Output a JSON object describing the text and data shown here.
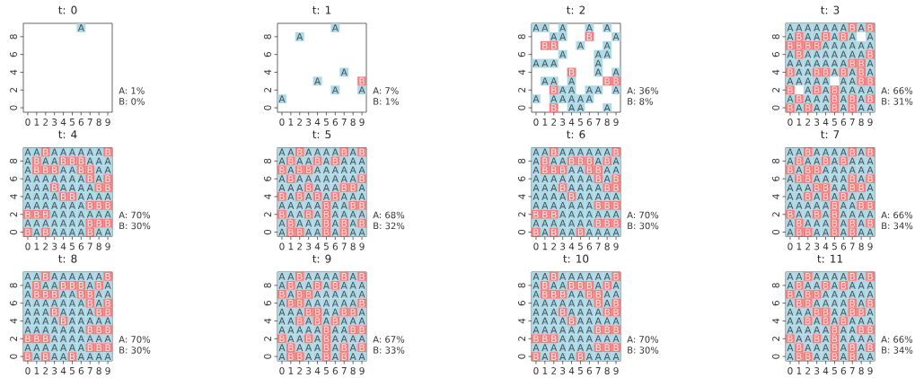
{
  "chart_data": [
    {
      "type": "scatter",
      "title": "t: 0",
      "xlim": [
        -0.5,
        9.5
      ],
      "ylim": [
        -0.5,
        9.5
      ],
      "xticks": [
        0,
        1,
        2,
        3,
        4,
        5,
        6,
        7,
        8,
        9
      ],
      "yticks": [
        0,
        2,
        4,
        6,
        8
      ],
      "marker": "square",
      "series": [
        {
          "name": "A",
          "color": "#add8e6",
          "x": [
            6
          ],
          "values": [
            9
          ]
        }
      ],
      "annotations": [
        "A: 1%",
        "B: 0%"
      ]
    },
    {
      "type": "scatter",
      "title": "t: 1",
      "xlim": [
        -0.5,
        9.5
      ],
      "ylim": [
        -0.5,
        9.5
      ],
      "xticks": [
        0,
        1,
        2,
        3,
        4,
        5,
        6,
        7,
        8,
        9
      ],
      "yticks": [
        0,
        2,
        4,
        6,
        8
      ],
      "marker": "square",
      "series": [
        {
          "name": "A",
          "color": "#add8e6",
          "x": [
            6,
            2,
            7,
            4,
            6,
            9,
            0
          ],
          "values": [
            9,
            8,
            4,
            3,
            2,
            2,
            1
          ]
        },
        {
          "name": "B",
          "color": "#f08080",
          "x": [
            9
          ],
          "values": [
            3
          ]
        }
      ],
      "annotations": [
        "A: 7%",
        "B: 1%"
      ]
    },
    {
      "type": "scatter",
      "title": "t: 2",
      "xlim": [
        -0.5,
        9.5
      ],
      "ylim": [
        -0.5,
        9.5
      ],
      "xticks": [
        0,
        1,
        2,
        3,
        4,
        5,
        6,
        7,
        8,
        9
      ],
      "yticks": [
        0,
        2,
        4,
        6,
        8
      ],
      "marker": "square",
      "series": [
        {
          "name": "A",
          "color": "#add8e6",
          "x": [
            0,
            1,
            3,
            6,
            8,
            2,
            3,
            9,
            5,
            8,
            3,
            7,
            8,
            0,
            1,
            2,
            7,
            7,
            9,
            1,
            2,
            4,
            3,
            4,
            6,
            7,
            9,
            0,
            2,
            3,
            4,
            5,
            6,
            4,
            5,
            8
          ],
          "values": [
            9,
            9,
            9,
            9,
            9,
            8,
            8,
            8,
            7,
            7,
            6,
            6,
            6,
            5,
            5,
            5,
            5,
            4,
            4,
            3,
            3,
            3,
            2,
            2,
            2,
            2,
            2,
            1,
            1,
            1,
            1,
            1,
            1,
            0,
            0,
            0
          ]
        },
        {
          "name": "B",
          "color": "#f08080",
          "x": [
            6,
            1,
            2,
            4,
            8,
            9,
            2,
            2
          ],
          "values": [
            8,
            7,
            7,
            4,
            3,
            3,
            2,
            0
          ]
        }
      ],
      "annotations": [
        "A: 36%",
        "B: 8%"
      ]
    },
    {
      "type": "scatter",
      "title": "t: 3",
      "xlim": [
        -0.5,
        9.5
      ],
      "ylim": [
        -0.5,
        9.5
      ],
      "xticks": [
        0,
        1,
        2,
        3,
        4,
        5,
        6,
        7,
        8,
        9
      ],
      "yticks": [
        0,
        2,
        4,
        6,
        8
      ],
      "marker": "square",
      "series": [
        {
          "name": "A",
          "color": "#add8e6",
          "x": [
            0,
            1,
            2,
            3,
            4,
            5,
            6,
            8,
            0,
            2,
            3,
            5,
            7,
            9,
            4,
            5,
            6,
            7,
            8,
            9,
            0,
            2,
            3,
            4,
            5,
            6,
            7,
            8,
            0,
            1,
            2,
            3,
            4,
            5,
            6,
            9,
            1,
            2,
            5,
            7,
            9,
            0,
            1,
            2,
            3,
            4,
            6,
            7,
            2,
            4,
            6,
            7,
            8,
            9,
            0,
            2,
            3,
            4,
            6,
            8,
            1,
            3,
            4,
            6,
            8,
            9
          ],
          "values": [
            9,
            9,
            9,
            9,
            9,
            9,
            9,
            9,
            8,
            8,
            8,
            8,
            8,
            8,
            7,
            7,
            7,
            7,
            7,
            7,
            6,
            6,
            6,
            6,
            6,
            6,
            6,
            6,
            5,
            5,
            5,
            5,
            5,
            5,
            5,
            5,
            4,
            4,
            4,
            4,
            4,
            3,
            3,
            3,
            3,
            3,
            3,
            3,
            2,
            2,
            2,
            2,
            2,
            2,
            1,
            1,
            1,
            1,
            1,
            1,
            0,
            0,
            0,
            0,
            0,
            0
          ]
        },
        {
          "name": "B",
          "color": "#f08080",
          "x": [
            7,
            9,
            1,
            4,
            6,
            0,
            1,
            2,
            3,
            1,
            9,
            7,
            8,
            0,
            3,
            4,
            6,
            8,
            8,
            9,
            0,
            3,
            5,
            1,
            5,
            7,
            9,
            0,
            2,
            5,
            7
          ],
          "values": [
            9,
            9,
            8,
            8,
            8,
            7,
            7,
            7,
            7,
            6,
            6,
            5,
            5,
            4,
            4,
            4,
            4,
            4,
            3,
            3,
            2,
            2,
            2,
            1,
            1,
            1,
            1,
            0,
            0,
            0,
            0
          ]
        }
      ],
      "annotations": [
        "A: 66%",
        "B: 31%"
      ]
    },
    {
      "type": "scatter",
      "title": "t: 4",
      "xlim": [
        -0.5,
        9.5
      ],
      "ylim": [
        -0.5,
        9.5
      ],
      "xticks": [
        0,
        1,
        2,
        3,
        4,
        5,
        6,
        7,
        8,
        9
      ],
      "yticks": [
        0,
        2,
        4,
        6,
        8
      ],
      "marker": "square",
      "series": [
        {
          "name": "A",
          "color": "#add8e6",
          "x": [
            0,
            1,
            3,
            4,
            5,
            6,
            7,
            8,
            0,
            2,
            3,
            7,
            8,
            9,
            0,
            4,
            5,
            8,
            9,
            0,
            1,
            2,
            3,
            4,
            5,
            6,
            8,
            0,
            1,
            2,
            4,
            5,
            6,
            7,
            0,
            1,
            2,
            3,
            6,
            7,
            8,
            9,
            0,
            1,
            2,
            3,
            4,
            5,
            6,
            3,
            4,
            5,
            6,
            7,
            8,
            9,
            0,
            1,
            2,
            3,
            4,
            5,
            6,
            1,
            3,
            4,
            5,
            6,
            8,
            9
          ],
          "values": [
            9,
            9,
            9,
            9,
            9,
            9,
            9,
            9,
            8,
            8,
            8,
            8,
            8,
            8,
            7,
            7,
            7,
            7,
            7,
            6,
            6,
            6,
            6,
            6,
            6,
            6,
            6,
            5,
            5,
            5,
            5,
            5,
            5,
            5,
            4,
            4,
            4,
            4,
            4,
            4,
            4,
            4,
            3,
            3,
            3,
            3,
            3,
            3,
            3,
            2,
            2,
            2,
            2,
            2,
            2,
            2,
            1,
            1,
            1,
            1,
            1,
            1,
            1,
            0,
            0,
            0,
            0,
            0,
            0,
            0
          ]
        },
        {
          "name": "B",
          "color": "#f08080",
          "x": [
            2,
            9,
            1,
            4,
            5,
            6,
            1,
            2,
            3,
            6,
            7,
            7,
            9,
            3,
            8,
            9,
            4,
            5,
            7,
            8,
            9,
            0,
            1,
            2,
            7,
            8,
            9,
            0,
            2,
            7
          ],
          "values": [
            9,
            9,
            8,
            8,
            8,
            8,
            7,
            7,
            7,
            7,
            7,
            6,
            6,
            5,
            5,
            5,
            4,
            4,
            3,
            3,
            3,
            2,
            2,
            2,
            1,
            1,
            1,
            0,
            0,
            0
          ]
        }
      ],
      "annotations": [
        "A: 70%",
        "B: 30%"
      ]
    },
    {
      "type": "scatter",
      "title": "t: 5",
      "xlim": [
        -0.5,
        9.5
      ],
      "ylim": [
        -0.5,
        9.5
      ],
      "xticks": [
        0,
        1,
        2,
        3,
        4,
        5,
        6,
        7,
        8,
        9
      ],
      "yticks": [
        0,
        2,
        4,
        6,
        8
      ],
      "marker": "square",
      "series": [
        {
          "name": "A",
          "color": "#add8e6",
          "x": [
            0,
            1,
            3,
            4,
            5,
            6,
            8,
            0,
            2,
            3,
            5,
            7,
            8,
            9,
            1,
            4,
            5,
            6,
            7,
            8,
            9,
            0,
            2,
            3,
            4,
            5,
            6,
            7,
            8,
            0,
            1,
            2,
            4,
            5,
            6,
            9,
            1,
            3,
            5,
            7,
            8,
            9,
            0,
            1,
            2,
            3,
            4,
            6,
            7,
            1,
            2,
            4,
            6,
            7,
            8,
            9,
            0,
            2,
            3,
            4,
            6,
            8,
            0,
            3,
            4,
            6,
            8,
            9
          ],
          "values": [
            9,
            9,
            9,
            9,
            9,
            9,
            9,
            8,
            8,
            8,
            8,
            8,
            8,
            8,
            7,
            7,
            7,
            7,
            7,
            7,
            7,
            6,
            6,
            6,
            6,
            6,
            6,
            6,
            6,
            5,
            5,
            5,
            5,
            5,
            5,
            5,
            4,
            4,
            4,
            4,
            4,
            4,
            3,
            3,
            3,
            3,
            3,
            3,
            3,
            2,
            2,
            2,
            2,
            2,
            2,
            2,
            1,
            1,
            1,
            1,
            1,
            1,
            0,
            0,
            0,
            0,
            0,
            0
          ]
        },
        {
          "name": "B",
          "color": "#f08080",
          "x": [
            2,
            7,
            9,
            1,
            4,
            6,
            0,
            2,
            3,
            1,
            9,
            3,
            7,
            8,
            0,
            2,
            4,
            6,
            5,
            8,
            9,
            0,
            3,
            5,
            1,
            5,
            7,
            9,
            1,
            2,
            5,
            7
          ],
          "values": [
            9,
            9,
            9,
            8,
            8,
            8,
            7,
            7,
            7,
            6,
            6,
            5,
            5,
            5,
            4,
            4,
            4,
            4,
            3,
            3,
            3,
            2,
            2,
            2,
            1,
            1,
            1,
            1,
            0,
            0,
            0,
            0
          ]
        }
      ],
      "annotations": [
        "A: 68%",
        "B: 32%"
      ]
    },
    {
      "type": "scatter",
      "title": "t: 6",
      "xlim": [
        -0.5,
        9.5
      ],
      "ylim": [
        -0.5,
        9.5
      ],
      "xticks": [
        0,
        1,
        2,
        3,
        4,
        5,
        6,
        7,
        8,
        9
      ],
      "yticks": [
        0,
        2,
        4,
        6,
        8
      ],
      "marker": "square",
      "series": [
        {
          "name": "A",
          "color": "#add8e6",
          "x": [
            0,
            1,
            3,
            4,
            5,
            6,
            7,
            8,
            0,
            2,
            3,
            7,
            9,
            0,
            4,
            5,
            8,
            9,
            0,
            1,
            2,
            3,
            4,
            5,
            6,
            8,
            0,
            1,
            2,
            4,
            5,
            6,
            7,
            0,
            1,
            2,
            3,
            5,
            6,
            7,
            8,
            9,
            0,
            1,
            2,
            3,
            4,
            5,
            6,
            3,
            4,
            5,
            6,
            7,
            8,
            9,
            0,
            1,
            2,
            3,
            4,
            5,
            6,
            1,
            3,
            4,
            6,
            7,
            8,
            9
          ],
          "values": [
            9,
            9,
            9,
            9,
            9,
            9,
            9,
            9,
            8,
            8,
            8,
            8,
            8,
            7,
            7,
            7,
            7,
            7,
            6,
            6,
            6,
            6,
            6,
            6,
            6,
            6,
            5,
            5,
            5,
            5,
            5,
            5,
            5,
            4,
            4,
            4,
            4,
            4,
            4,
            4,
            4,
            4,
            3,
            3,
            3,
            3,
            3,
            3,
            3,
            2,
            2,
            2,
            2,
            2,
            2,
            2,
            1,
            1,
            1,
            1,
            1,
            1,
            1,
            0,
            0,
            0,
            0,
            0,
            0,
            0
          ]
        },
        {
          "name": "B",
          "color": "#f08080",
          "x": [
            2,
            9,
            1,
            4,
            5,
            6,
            8,
            1,
            2,
            3,
            6,
            7,
            7,
            9,
            3,
            8,
            9,
            4,
            7,
            8,
            9,
            0,
            1,
            2,
            7,
            8,
            9,
            0,
            2,
            5
          ],
          "values": [
            9,
            9,
            8,
            8,
            8,
            8,
            8,
            7,
            7,
            7,
            7,
            7,
            6,
            6,
            5,
            5,
            5,
            4,
            3,
            3,
            3,
            2,
            2,
            2,
            1,
            1,
            1,
            0,
            0,
            0
          ]
        }
      ],
      "annotations": [
        "A: 70%",
        "B: 30%"
      ]
    },
    {
      "type": "scatter",
      "title": "t: 7",
      "xlim": [
        -0.5,
        9.5
      ],
      "ylim": [
        -0.5,
        9.5
      ],
      "xticks": [
        0,
        1,
        2,
        3,
        4,
        5,
        6,
        7,
        8,
        9
      ],
      "yticks": [
        0,
        2,
        4,
        6,
        8
      ],
      "marker": "square",
      "series": [
        {
          "name": "A",
          "color": "#add8e6",
          "x": [
            0,
            1,
            3,
            4,
            5,
            6,
            8,
            0,
            2,
            3,
            5,
            7,
            8,
            9,
            1,
            4,
            5,
            6,
            7,
            8,
            9,
            0,
            3,
            4,
            5,
            6,
            8,
            0,
            1,
            2,
            5,
            6,
            9,
            0,
            1,
            3,
            5,
            7,
            8,
            9,
            0,
            1,
            2,
            3,
            4,
            6,
            7,
            1,
            2,
            4,
            6,
            7,
            8,
            9,
            0,
            2,
            3,
            4,
            6,
            8,
            0,
            3,
            4,
            6,
            8,
            9
          ],
          "values": [
            9,
            9,
            9,
            9,
            9,
            9,
            9,
            8,
            8,
            8,
            8,
            8,
            8,
            8,
            7,
            7,
            7,
            7,
            7,
            7,
            7,
            6,
            6,
            6,
            6,
            6,
            6,
            5,
            5,
            5,
            5,
            5,
            5,
            4,
            4,
            4,
            4,
            4,
            4,
            4,
            3,
            3,
            3,
            3,
            3,
            3,
            3,
            2,
            2,
            2,
            2,
            2,
            2,
            2,
            1,
            1,
            1,
            1,
            1,
            1,
            0,
            0,
            0,
            0,
            0,
            0
          ]
        },
        {
          "name": "B",
          "color": "#f08080",
          "x": [
            2,
            7,
            9,
            1,
            4,
            6,
            0,
            2,
            3,
            1,
            2,
            7,
            9,
            3,
            4,
            7,
            8,
            2,
            4,
            6,
            5,
            8,
            9,
            0,
            3,
            5,
            1,
            5,
            7,
            9,
            1,
            2,
            5,
            7
          ],
          "values": [
            9,
            9,
            9,
            8,
            8,
            8,
            7,
            7,
            7,
            6,
            6,
            6,
            6,
            5,
            5,
            5,
            5,
            4,
            4,
            4,
            3,
            3,
            3,
            2,
            2,
            2,
            1,
            1,
            1,
            1,
            0,
            0,
            0,
            0
          ]
        }
      ],
      "annotations": [
        "A: 66%",
        "B: 34%"
      ]
    },
    {
      "type": "scatter",
      "title": "t: 8",
      "xlim": [
        -0.5,
        9.5
      ],
      "ylim": [
        -0.5,
        9.5
      ],
      "xticks": [
        0,
        1,
        2,
        3,
        4,
        5,
        6,
        7,
        8,
        9
      ],
      "yticks": [
        0,
        2,
        4,
        6,
        8
      ],
      "marker": "square",
      "series": [
        {
          "name": "A",
          "color": "#add8e6",
          "x": [
            0,
            1,
            3,
            4,
            5,
            6,
            7,
            8,
            0,
            2,
            3,
            7,
            9,
            0,
            4,
            5,
            8,
            9,
            0,
            1,
            2,
            3,
            4,
            5,
            6,
            8,
            0,
            1,
            2,
            4,
            5,
            6,
            7,
            0,
            1,
            2,
            3,
            5,
            6,
            7,
            8,
            9,
            0,
            1,
            2,
            3,
            4,
            5,
            6,
            3,
            4,
            5,
            6,
            7,
            8,
            9,
            0,
            1,
            2,
            3,
            4,
            5,
            6,
            1,
            3,
            4,
            6,
            7,
            8,
            9
          ],
          "values": [
            9,
            9,
            9,
            9,
            9,
            9,
            9,
            9,
            8,
            8,
            8,
            8,
            8,
            7,
            7,
            7,
            7,
            7,
            6,
            6,
            6,
            6,
            6,
            6,
            6,
            6,
            5,
            5,
            5,
            5,
            5,
            5,
            5,
            4,
            4,
            4,
            4,
            4,
            4,
            4,
            4,
            4,
            3,
            3,
            3,
            3,
            3,
            3,
            3,
            2,
            2,
            2,
            2,
            2,
            2,
            2,
            1,
            1,
            1,
            1,
            1,
            1,
            1,
            0,
            0,
            0,
            0,
            0,
            0,
            0
          ]
        },
        {
          "name": "B",
          "color": "#f08080",
          "x": [
            2,
            9,
            1,
            4,
            5,
            6,
            8,
            1,
            2,
            3,
            6,
            7,
            7,
            9,
            3,
            8,
            9,
            4,
            7,
            8,
            9,
            0,
            1,
            2,
            7,
            8,
            9,
            0,
            2,
            5
          ],
          "values": [
            9,
            9,
            8,
            8,
            8,
            8,
            8,
            7,
            7,
            7,
            7,
            7,
            6,
            6,
            5,
            5,
            5,
            4,
            3,
            3,
            3,
            2,
            2,
            2,
            1,
            1,
            1,
            0,
            0,
            0
          ]
        }
      ],
      "annotations": [
        "A: 70%",
        "B: 30%"
      ]
    },
    {
      "type": "scatter",
      "title": "t: 9",
      "xlim": [
        -0.5,
        9.5
      ],
      "ylim": [
        -0.5,
        9.5
      ],
      "xticks": [
        0,
        1,
        2,
        3,
        4,
        5,
        6,
        7,
        8,
        9
      ],
      "yticks": [
        0,
        2,
        4,
        6,
        8
      ],
      "marker": "square",
      "series": [
        {
          "name": "A",
          "color": "#add8e6",
          "x": [
            0,
            1,
            3,
            4,
            5,
            6,
            8,
            0,
            2,
            3,
            5,
            7,
            8,
            9,
            1,
            4,
            5,
            6,
            7,
            8,
            9,
            0,
            3,
            4,
            5,
            6,
            7,
            8,
            0,
            1,
            2,
            5,
            6,
            9,
            0,
            1,
            3,
            5,
            7,
            8,
            9,
            0,
            1,
            2,
            3,
            4,
            6,
            7,
            1,
            2,
            4,
            6,
            7,
            8,
            9,
            0,
            2,
            3,
            4,
            6,
            8,
            0,
            3,
            4,
            6,
            8,
            9
          ],
          "values": [
            9,
            9,
            9,
            9,
            9,
            9,
            9,
            8,
            8,
            8,
            8,
            8,
            8,
            8,
            7,
            7,
            7,
            7,
            7,
            7,
            7,
            6,
            6,
            6,
            6,
            6,
            6,
            6,
            5,
            5,
            5,
            5,
            5,
            5,
            4,
            4,
            4,
            4,
            4,
            4,
            4,
            3,
            3,
            3,
            3,
            3,
            3,
            3,
            2,
            2,
            2,
            2,
            2,
            2,
            2,
            1,
            1,
            1,
            1,
            1,
            1,
            0,
            0,
            0,
            0,
            0,
            0
          ]
        },
        {
          "name": "B",
          "color": "#f08080",
          "x": [
            2,
            7,
            9,
            1,
            4,
            6,
            0,
            2,
            3,
            1,
            2,
            9,
            3,
            4,
            7,
            8,
            2,
            4,
            6,
            5,
            8,
            9,
            0,
            3,
            5,
            1,
            5,
            7,
            9,
            1,
            2,
            5,
            7
          ],
          "values": [
            9,
            9,
            9,
            8,
            8,
            8,
            7,
            7,
            7,
            6,
            6,
            6,
            5,
            5,
            5,
            5,
            4,
            4,
            4,
            3,
            3,
            3,
            2,
            2,
            2,
            1,
            1,
            1,
            1,
            0,
            0,
            0,
            0
          ]
        }
      ],
      "annotations": [
        "A: 67%",
        "B: 33%"
      ]
    },
    {
      "type": "scatter",
      "title": "t: 10",
      "xlim": [
        -0.5,
        9.5
      ],
      "ylim": [
        -0.5,
        9.5
      ],
      "xticks": [
        0,
        1,
        2,
        3,
        4,
        5,
        6,
        7,
        8,
        9
      ],
      "yticks": [
        0,
        2,
        4,
        6,
        8
      ],
      "marker": "square",
      "series": [
        {
          "name": "A",
          "color": "#add8e6",
          "x": [
            0,
            1,
            3,
            4,
            5,
            6,
            7,
            8,
            0,
            2,
            3,
            7,
            9,
            0,
            4,
            5,
            8,
            9,
            0,
            1,
            2,
            3,
            4,
            5,
            6,
            8,
            0,
            1,
            2,
            4,
            5,
            6,
            7,
            0,
            1,
            2,
            3,
            5,
            6,
            7,
            8,
            9,
            0,
            1,
            2,
            3,
            4,
            5,
            6,
            3,
            4,
            5,
            6,
            7,
            8,
            9,
            0,
            1,
            2,
            3,
            4,
            5,
            6,
            1,
            3,
            4,
            6,
            7,
            8,
            9
          ],
          "values": [
            9,
            9,
            9,
            9,
            9,
            9,
            9,
            9,
            8,
            8,
            8,
            8,
            8,
            7,
            7,
            7,
            7,
            7,
            6,
            6,
            6,
            6,
            6,
            6,
            6,
            6,
            5,
            5,
            5,
            5,
            5,
            5,
            5,
            4,
            4,
            4,
            4,
            4,
            4,
            4,
            4,
            4,
            3,
            3,
            3,
            3,
            3,
            3,
            3,
            2,
            2,
            2,
            2,
            2,
            2,
            2,
            1,
            1,
            1,
            1,
            1,
            1,
            1,
            0,
            0,
            0,
            0,
            0,
            0,
            0
          ]
        },
        {
          "name": "B",
          "color": "#f08080",
          "x": [
            2,
            9,
            1,
            4,
            5,
            6,
            8,
            1,
            2,
            3,
            6,
            7,
            7,
            9,
            3,
            8,
            9,
            4,
            7,
            8,
            9,
            0,
            1,
            2,
            7,
            8,
            9,
            0,
            2,
            5
          ],
          "values": [
            9,
            9,
            8,
            8,
            8,
            8,
            8,
            7,
            7,
            7,
            7,
            7,
            6,
            6,
            5,
            5,
            5,
            4,
            3,
            3,
            3,
            2,
            2,
            2,
            1,
            1,
            1,
            0,
            0,
            0
          ]
        }
      ],
      "annotations": [
        "A: 70%",
        "B: 30%"
      ]
    },
    {
      "type": "scatter",
      "title": "t: 11",
      "xlim": [
        -0.5,
        9.5
      ],
      "ylim": [
        -0.5,
        9.5
      ],
      "xticks": [
        0,
        1,
        2,
        3,
        4,
        5,
        6,
        7,
        8,
        9
      ],
      "yticks": [
        0,
        2,
        4,
        6,
        8
      ],
      "marker": "square",
      "series": [
        {
          "name": "A",
          "color": "#add8e6",
          "x": [
            0,
            1,
            3,
            4,
            5,
            6,
            8,
            0,
            2,
            3,
            5,
            7,
            8,
            9,
            1,
            4,
            5,
            6,
            7,
            8,
            9,
            0,
            3,
            4,
            5,
            6,
            8,
            0,
            1,
            2,
            5,
            6,
            9,
            0,
            1,
            3,
            5,
            7,
            8,
            9,
            0,
            1,
            2,
            3,
            4,
            6,
            7,
            1,
            2,
            4,
            6,
            7,
            8,
            9,
            0,
            2,
            3,
            4,
            6,
            8,
            0,
            3,
            4,
            6,
            8,
            9
          ],
          "values": [
            9,
            9,
            9,
            9,
            9,
            9,
            9,
            8,
            8,
            8,
            8,
            8,
            8,
            8,
            7,
            7,
            7,
            7,
            7,
            7,
            7,
            6,
            6,
            6,
            6,
            6,
            6,
            5,
            5,
            5,
            5,
            5,
            5,
            4,
            4,
            4,
            4,
            4,
            4,
            4,
            3,
            3,
            3,
            3,
            3,
            3,
            3,
            2,
            2,
            2,
            2,
            2,
            2,
            2,
            1,
            1,
            1,
            1,
            1,
            1,
            0,
            0,
            0,
            0,
            0,
            0
          ]
        },
        {
          "name": "B",
          "color": "#f08080",
          "x": [
            2,
            7,
            9,
            1,
            4,
            6,
            0,
            2,
            3,
            1,
            2,
            7,
            9,
            3,
            4,
            7,
            8,
            2,
            4,
            6,
            5,
            8,
            9,
            0,
            3,
            5,
            1,
            5,
            7,
            9,
            1,
            2,
            5,
            7
          ],
          "values": [
            9,
            9,
            9,
            8,
            8,
            8,
            7,
            7,
            7,
            6,
            6,
            6,
            6,
            5,
            5,
            5,
            5,
            4,
            4,
            4,
            3,
            3,
            3,
            2,
            2,
            2,
            1,
            1,
            1,
            1,
            0,
            0,
            0,
            0
          ]
        }
      ],
      "annotations": [
        "A: 66%",
        "B: 34%"
      ]
    }
  ]
}
